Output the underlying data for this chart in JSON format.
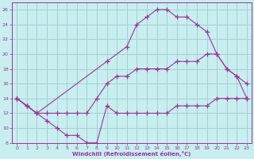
{
  "xlabel": "Windchill (Refroidissement éolien,°C)",
  "background_color": "#c8eef0",
  "grid_color": "#a0cccc",
  "line_color": "#993399",
  "xlim": [
    -0.5,
    23.5
  ],
  "ylim": [
    8,
    27
  ],
  "xticks": [
    0,
    1,
    2,
    3,
    4,
    5,
    6,
    7,
    8,
    9,
    10,
    11,
    12,
    13,
    14,
    15,
    16,
    17,
    18,
    19,
    20,
    21,
    22,
    23
  ],
  "yticks": [
    8,
    10,
    12,
    14,
    16,
    18,
    20,
    22,
    24,
    26
  ],
  "line1_x": [
    0,
    1,
    2,
    3,
    4,
    5,
    6,
    7,
    8,
    9,
    10,
    11,
    12,
    13,
    14,
    15,
    16,
    17,
    18,
    19,
    20,
    21,
    22,
    23
  ],
  "line1_y": [
    14,
    13,
    12,
    11,
    10,
    9,
    9,
    8,
    8,
    13,
    12,
    12,
    12,
    12,
    12,
    12,
    13,
    13,
    13,
    13,
    14,
    14,
    14,
    14
  ],
  "line2_x": [
    0,
    1,
    2,
    3,
    4,
    5,
    6,
    7,
    8,
    9,
    10,
    11,
    12,
    13,
    14,
    15,
    16,
    17,
    18,
    19,
    20,
    21,
    22,
    23
  ],
  "line2_y": [
    14,
    13,
    12,
    12,
    12,
    12,
    12,
    12,
    14,
    16,
    17,
    17,
    18,
    18,
    18,
    18,
    19,
    19,
    19,
    20,
    20,
    18,
    17,
    16
  ],
  "line3_x": [
    0,
    1,
    2,
    9,
    11,
    12,
    13,
    14,
    15,
    16,
    17,
    18,
    19,
    20,
    21,
    22,
    23
  ],
  "line3_y": [
    14,
    13,
    12,
    19,
    21,
    24,
    25,
    26,
    26,
    25,
    25,
    24,
    23,
    20,
    18,
    17,
    14
  ]
}
